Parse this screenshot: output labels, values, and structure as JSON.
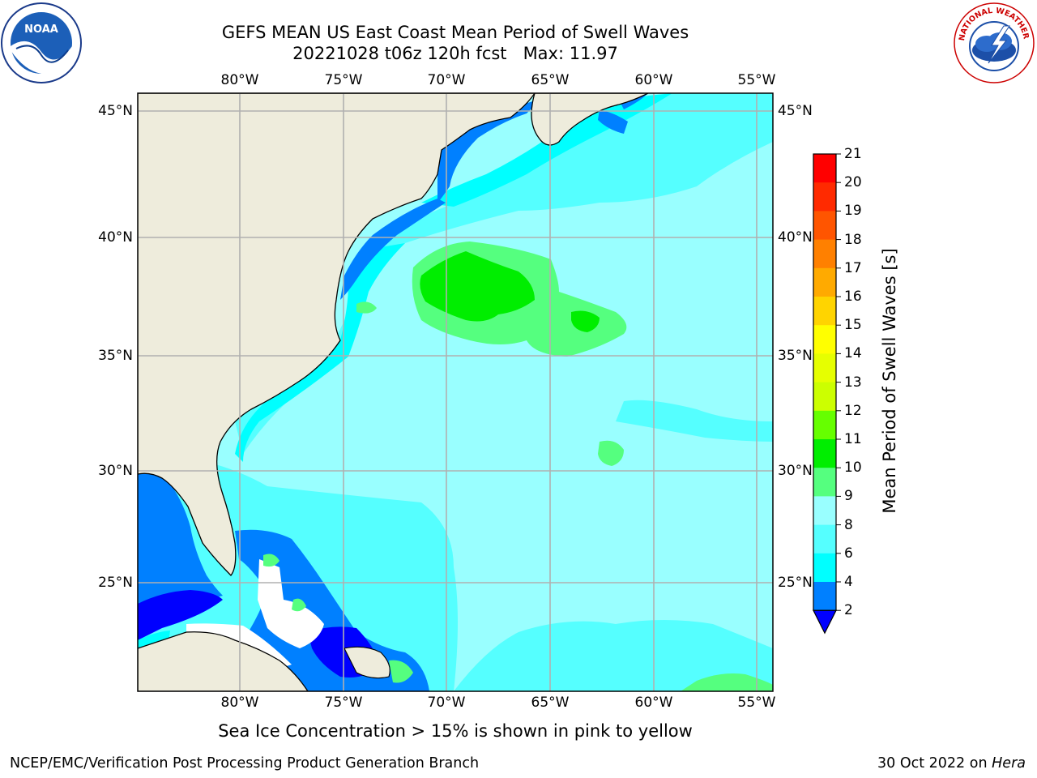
{
  "header": {
    "title_line1": "GEFS MEAN US East Coast Mean Period of Swell Waves",
    "title_line2": "20221028 t06z 120h fcst   Max: 11.97"
  },
  "logos": {
    "noaa_text": "NOAA",
    "nws_text": "NATIONAL WEATHER SERVICE"
  },
  "map": {
    "lon_labels_top": [
      "80°W",
      "75°W",
      "70°W",
      "65°W",
      "60°W",
      "55°W"
    ],
    "lon_labels_bottom": [
      "80°W",
      "75°W",
      "70°W",
      "65°W",
      "60°W",
      "55°W"
    ],
    "lat_labels_left": [
      "45°N",
      "40°N",
      "35°N",
      "30°N",
      "25°N"
    ],
    "lat_labels_right": [
      "45°N",
      "40°N",
      "35°N",
      "30°N",
      "25°N"
    ],
    "colors": {
      "land": "#eeecdc",
      "ocean_base": "#99ffff",
      "grid": "#b0b0b0",
      "no_data": "#ffffff"
    }
  },
  "colorbar": {
    "title": "Mean Period of Swell Waves [s]",
    "tick_labels": [
      "21",
      "20",
      "19",
      "18",
      "17",
      "16",
      "15",
      "14",
      "13",
      "12",
      "11",
      "10",
      "9",
      "8",
      "6",
      "4",
      "2"
    ],
    "band_colors": [
      "#ff0000",
      "#ff2a00",
      "#ff5500",
      "#ff8000",
      "#ffaa00",
      "#ffd400",
      "#ffff00",
      "#e6ff00",
      "#ccff00",
      "#66ff00",
      "#00ee00",
      "#55ff7f",
      "#99ffff",
      "#55ffff",
      "#00ffff",
      "#0080ff",
      "#0000ff"
    ]
  },
  "footer": {
    "note": "Sea Ice Concentration > 15% is shown in pink to yellow",
    "left": "NCEP/EMC/Verification Post Processing Product Generation Branch",
    "right_date": "30 Oct 2022 on",
    "right_host": "Hera"
  }
}
